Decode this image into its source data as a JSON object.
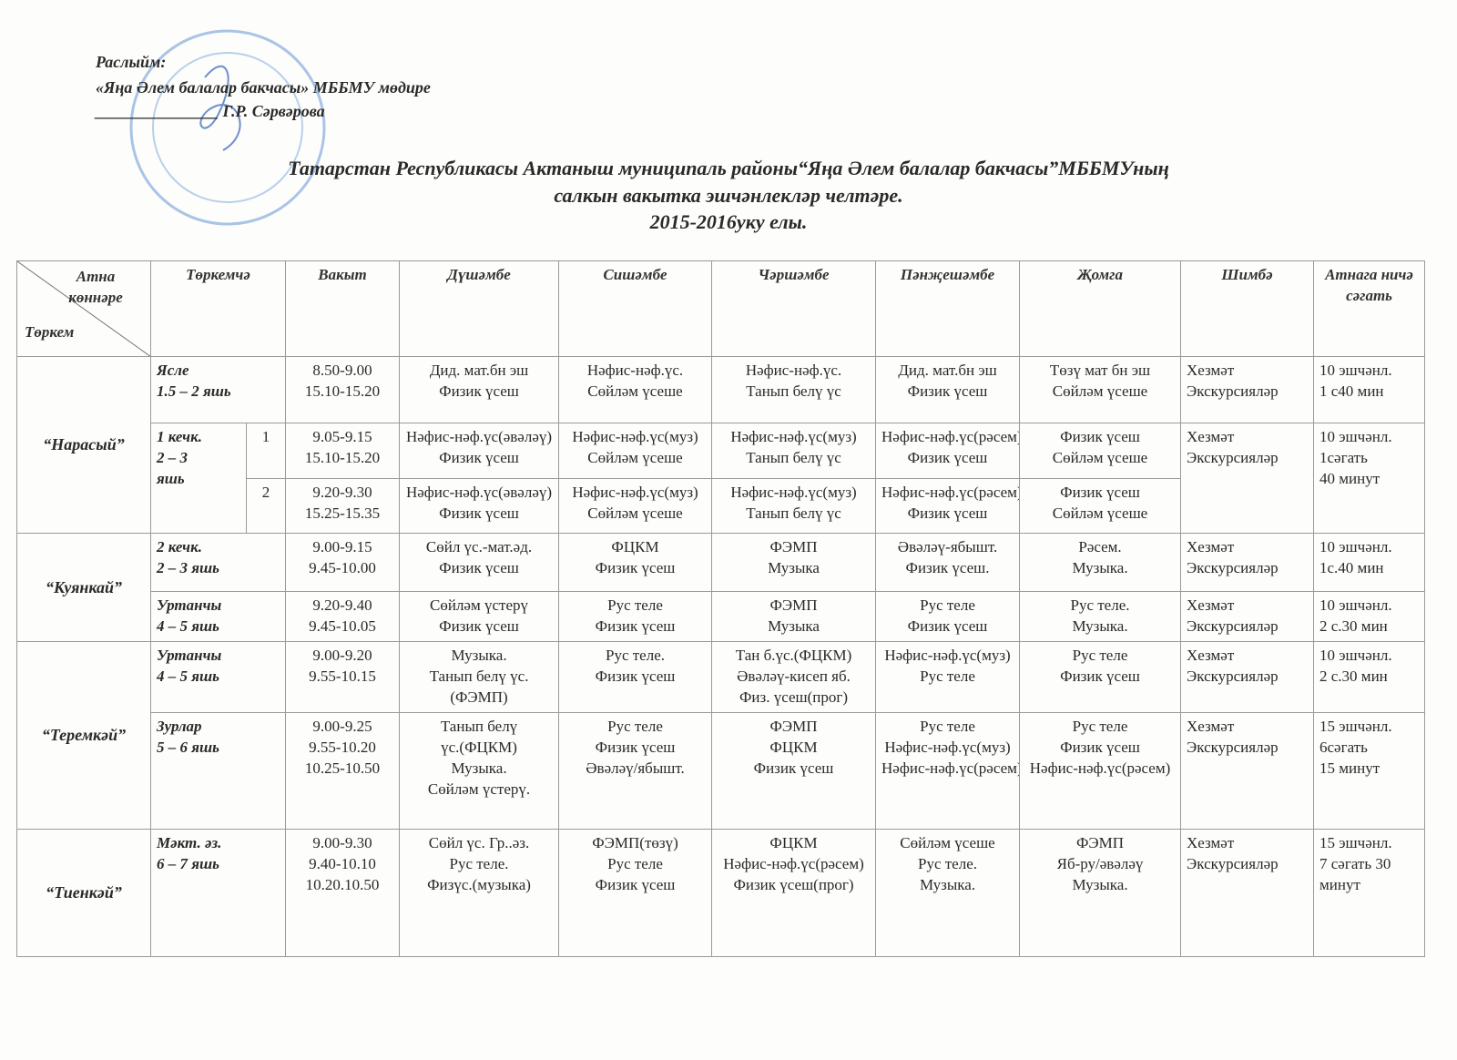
{
  "approval": {
    "label": "Раслыйм:",
    "position": "«Яңа Әлем балалар бакчасы» МББМУ мөдире",
    "signature": "_______________ Г.Р. Сәрвәрова"
  },
  "title": {
    "line1": "Татарстан Республикасы Актаныш муниципаль районы“Яңа Әлем балалар бакчасы”МББМУның",
    "line2": "салкын вакытка эшчәнлекләр челтәре.",
    "line3": "2015-2016уку елы."
  },
  "table": {
    "corner_top": "Атна көннәре",
    "corner_bottom": "Төркем",
    "columns": [
      "Төркемчә",
      "Вакыт",
      "Дүшәмбе",
      "Сишәмбе",
      "Чәршәмбе",
      "Пәнҗешәмбе",
      "Җомга",
      "Шимбә",
      "Атнага ничә сәгать"
    ],
    "groups": [
      {
        "name": "“Нарасый”",
        "rows": [
          {
            "subgroup": [
              "Ясле",
              "1.5 – 2 яшь"
            ],
            "time": [
              "8.50-9.00",
              "15.10-15.20"
            ],
            "days": [
              [
                "Дид. мат.бн эш",
                "Физик үсеш"
              ],
              [
                "Нәфис-нәф.үс.",
                "Сөйләм үсеше"
              ],
              [
                "Нәфис-нәф.үс.",
                "Танып белү үс"
              ],
              [
                "Дид. мат.бн эш",
                "Физик үсеш"
              ],
              [
                "Төзү мат бн эш",
                "Сөйләм үсеше"
              ],
              [
                "Хезмәт",
                "Экскурсияләр"
              ]
            ],
            "total": [
              "10 эшчәнл.",
              "1 с40 мин"
            ]
          },
          {
            "subgroup": [
              "1 кечк.",
              "2 – 3",
              "яшь"
            ],
            "parts": [
              {
                "number": "1",
                "time": [
                  "9.05-9.15",
                  "15.10-15.20"
                ],
                "days": [
                  [
                    "Нәфис-нәф.үс(әвәләү)",
                    "Физик үсеш"
                  ],
                  [
                    "Нәфис-нәф.үс(муз)",
                    "Сөйләм үсеше"
                  ],
                  [
                    "Нәфис-нәф.үс(муз)",
                    "Танып белү үс"
                  ],
                  [
                    "Нәфис-нәф.үс(рәсем)",
                    "Физик үсеш"
                  ],
                  [
                    "Физик үсеш",
                    "Сөйләм үсеше"
                  ]
                ]
              },
              {
                "number": "2",
                "time": [
                  "9.20-9.30",
                  "15.25-15.35"
                ],
                "days": [
                  [
                    "Нәфис-нәф.үс(әвәләү)",
                    "Физик үсеш"
                  ],
                  [
                    "Нәфис-нәф.үс(муз)",
                    "Сөйләм үсеше"
                  ],
                  [
                    "Нәфис-нәф.үс(муз)",
                    "Танып белү үс"
                  ],
                  [
                    "Нәфис-нәф.үс(рәсем)",
                    "Физик үсеш"
                  ],
                  [
                    "Физик үсеш",
                    "Сөйләм үсеше"
                  ]
                ]
              }
            ],
            "saturday": [
              "Хезмәт",
              "Экскурсияләр"
            ],
            "total": [
              "10 эшчәнл.",
              "1сәгать",
              "40 минут"
            ]
          }
        ]
      },
      {
        "name": "“Куянкай”",
        "rows": [
          {
            "subgroup": [
              "2 кечк.",
              "2 – 3 яшь"
            ],
            "time": [
              "9.00-9.15",
              "9.45-10.00"
            ],
            "days": [
              [
                "Сөйл үс.-мат.әд.",
                "Физик үсеш"
              ],
              [
                "ФЦКМ",
                "Физик үсеш"
              ],
              [
                "ФЭМП",
                "Музыка"
              ],
              [
                "Әвәләү-ябышт.",
                "Физик үсеш."
              ],
              [
                "Рәсем.",
                "Музыка."
              ],
              [
                "Хезмәт",
                "Экскурсияләр"
              ]
            ],
            "total": [
              "10 эшчәнл.",
              "1с.40 мин"
            ]
          },
          {
            "subgroup": [
              "Уртанчы",
              "4 – 5 яшь"
            ],
            "time": [
              "9.20-9.40",
              "9.45-10.05"
            ],
            "days": [
              [
                "Сөйләм үстерү",
                "Физик үсеш"
              ],
              [
                "Рус теле",
                "Физик үсеш"
              ],
              [
                "ФЭМП",
                "Музыка"
              ],
              [
                "Рус теле",
                "Физик үсеш"
              ],
              [
                "Рус теле.",
                "Музыка."
              ],
              [
                "Хезмәт",
                "Экскурсияләр"
              ]
            ],
            "total": [
              "10 эшчәнл.",
              "2 с.30 мин"
            ]
          }
        ]
      },
      {
        "name": "“Теремкәй”",
        "rows": [
          {
            "subgroup": [
              "Уртанчы",
              "4 – 5 яшь"
            ],
            "time": [
              "9.00-9.20",
              "9.55-10.15"
            ],
            "days": [
              [
                "Музыка.",
                "Танып белү үс.",
                "(ФЭМП)"
              ],
              [
                "Рус теле.",
                "Физик үсеш"
              ],
              [
                "Тан б.үс.(ФЦКМ)",
                "Әвәләү-кисеп яб.",
                "Физ. үсеш(прог)"
              ],
              [
                "Нәфис-нәф.үс(муз)",
                "Рус теле"
              ],
              [
                "Рус теле",
                "Физик үсеш"
              ],
              [
                "Хезмәт",
                "Экскурсияләр"
              ]
            ],
            "total": [
              "10 эшчәнл.",
              "2 с.30 мин"
            ]
          },
          {
            "subgroup": [
              "Зурлар",
              "5 – 6 яшь"
            ],
            "time": [
              "9.00-9.25",
              "9.55-10.20",
              "10.25-10.50"
            ],
            "days": [
              [
                "Танып белү",
                "үс.(ФЦКМ)",
                "Музыка.",
                "Сөйләм үстерү."
              ],
              [
                "Рус теле",
                "Физик үсеш",
                "Әвәләү/ябышт."
              ],
              [
                "ФЭМП",
                "ФЦКМ",
                "Физик үсеш"
              ],
              [
                "Рус теле",
                "Нәфис-нәф.үс(муз)",
                "Нәфис-нәф.үс(рәсем)"
              ],
              [
                "Рус теле",
                "Физик үсеш",
                "Нәфис-нәф.үс(рәсем)"
              ],
              [
                "Хезмәт",
                "Экскурсияләр"
              ]
            ],
            "total": [
              "15 эшчәнл.",
              "6сәгать",
              "15 минут"
            ]
          }
        ]
      },
      {
        "name": "“Тиенкәй”",
        "rows": [
          {
            "subgroup": [
              "Мәкт. әз.",
              "6 – 7 яшь"
            ],
            "time": [
              "9.00-9.30",
              "9.40-10.10",
              "10.20.10.50"
            ],
            "days": [
              [
                "Сөйл үс. Гр..әз.",
                "Рус теле.",
                "Физүс.(музыка)"
              ],
              [
                "ФЭМП(төзү)",
                "Рус теле",
                "Физик үсеш"
              ],
              [
                "ФЦКМ",
                "Нәфис-нәф.үс(рәсем)",
                "Физик үсеш(прог)"
              ],
              [
                "Сөйләм үсеше",
                "Рус теле.",
                "Музыка."
              ],
              [
                "ФЭМП",
                "Яб-ру/әвәләү",
                "Музыка."
              ],
              [
                "Хезмәт",
                "Экскурсияләр"
              ]
            ],
            "total": [
              "15 эшчәнл.",
              "7 сәгать 30",
              "минут"
            ]
          }
        ]
      }
    ]
  }
}
